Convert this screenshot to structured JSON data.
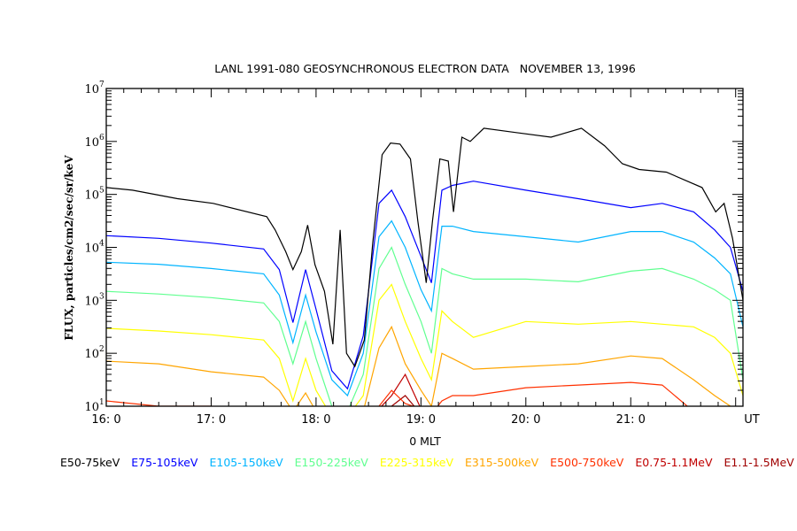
{
  "chart_data": {
    "type": "line",
    "title": "LANL 1991-080 GEOSYNCHRONOUS ELECTRON DATA   NOVEMBER 13, 1996",
    "xlabel": "0 MLT",
    "x_unit_label": "UT",
    "ylabel": "FLUX, particles/cm2/sec/sr/keV",
    "yscale": "log",
    "ylim_log10": [
      1,
      7
    ],
    "xlim_hours": [
      16,
      22.07
    ],
    "x_ticks": [
      {
        "value": 16,
        "label": "16: 0"
      },
      {
        "value": 17,
        "label": "17: 0"
      },
      {
        "value": 18,
        "label": "18: 0"
      },
      {
        "value": 19,
        "label": "19: 0"
      },
      {
        "value": 20,
        "label": "20: 0"
      },
      {
        "value": 21,
        "label": "21: 0"
      }
    ],
    "y_ticks": [
      {
        "exp": 1,
        "base": "10",
        "sup": "1"
      },
      {
        "exp": 2,
        "base": "10",
        "sup": "2"
      },
      {
        "exp": 3,
        "base": "10",
        "sup": "3"
      },
      {
        "exp": 4,
        "base": "10",
        "sup": "4"
      },
      {
        "exp": 5,
        "base": "10",
        "sup": "5"
      },
      {
        "exp": 6,
        "base": "10",
        "sup": "6"
      },
      {
        "exp": 7,
        "base": "10",
        "sup": "7"
      }
    ],
    "black_series": {
      "name": "E50-75keV",
      "color": "#000000",
      "x": [
        16.0,
        16.25,
        16.68,
        17.02,
        17.53,
        17.61,
        17.71,
        17.78,
        17.86,
        17.92,
        17.99,
        18.08,
        18.16,
        18.23,
        18.29,
        18.37,
        18.46,
        18.54,
        18.63,
        18.71,
        18.8,
        18.9,
        18.97,
        19.05,
        19.11,
        19.18,
        19.26,
        19.31,
        19.39,
        19.47,
        19.6,
        19.9,
        20.24,
        20.53,
        20.75,
        20.92,
        21.08,
        21.34,
        21.68,
        21.81,
        21.89,
        21.97,
        22.07
      ],
      "y_log10": [
        5.13,
        5.08,
        4.92,
        4.83,
        4.58,
        4.33,
        3.92,
        3.58,
        3.92,
        4.42,
        3.67,
        3.17,
        2.17,
        4.33,
        2.0,
        1.75,
        2.25,
        4.08,
        5.75,
        5.97,
        5.95,
        5.67,
        4.5,
        3.33,
        4.5,
        5.67,
        5.63,
        4.67,
        6.08,
        6.0,
        6.25,
        6.17,
        6.08,
        6.25,
        5.92,
        5.58,
        5.47,
        5.42,
        5.13,
        4.67,
        4.83,
        4.17,
        3.0
      ]
    },
    "x": [
      16.0,
      16.5,
      17.0,
      17.5,
      17.65,
      17.78,
      17.9,
      18.0,
      18.15,
      18.3,
      18.45,
      18.6,
      18.72,
      18.85,
      19.0,
      19.1,
      19.2,
      19.3,
      19.5,
      20.0,
      20.5,
      21.0,
      21.3,
      21.6,
      21.8,
      21.95,
      22.07
    ],
    "series": [
      {
        "name": "E75-105keV",
        "color": "#0000ff",
        "y_log10": [
          4.22,
          4.17,
          4.08,
          3.97,
          3.58,
          2.58,
          3.58,
          2.83,
          1.67,
          1.33,
          2.33,
          4.83,
          5.08,
          4.58,
          3.83,
          3.33,
          5.08,
          5.17,
          5.25,
          5.08,
          4.92,
          4.75,
          4.83,
          4.67,
          4.33,
          4.0,
          3.17
        ]
      },
      {
        "name": "E105-150keV",
        "color": "#00b4ff",
        "y_log10": [
          3.72,
          3.68,
          3.6,
          3.5,
          3.1,
          2.2,
          3.1,
          2.4,
          1.5,
          1.2,
          2.0,
          4.2,
          4.5,
          4.0,
          3.2,
          2.8,
          4.4,
          4.4,
          4.3,
          4.2,
          4.1,
          4.3,
          4.3,
          4.1,
          3.8,
          3.5,
          2.5
        ]
      },
      {
        "name": "E150-225keV",
        "color": "#60ff90",
        "y_log10": [
          3.17,
          3.12,
          3.05,
          2.95,
          2.6,
          1.8,
          2.6,
          1.9,
          1.0,
          0.9,
          1.6,
          3.6,
          4.0,
          3.3,
          2.6,
          2.0,
          3.6,
          3.5,
          3.4,
          3.4,
          3.35,
          3.55,
          3.6,
          3.4,
          3.2,
          3.0,
          1.5
        ]
      },
      {
        "name": "E225-315keV",
        "color": "#ffff00",
        "y_log10": [
          2.47,
          2.42,
          2.35,
          2.25,
          1.9,
          1.1,
          1.9,
          1.3,
          0.8,
          0.8,
          1.2,
          3.0,
          3.3,
          2.6,
          1.9,
          1.5,
          2.8,
          2.6,
          2.3,
          2.6,
          2.55,
          2.6,
          2.55,
          2.5,
          2.3,
          2.0,
          1.2
        ]
      },
      {
        "name": "E315-500keV",
        "color": "#ffa500",
        "y_log10": [
          1.85,
          1.8,
          1.65,
          1.55,
          1.3,
          0.9,
          1.25,
          0.9,
          0.8,
          0.8,
          0.9,
          2.1,
          2.5,
          1.8,
          1.3,
          1.0,
          2.0,
          1.9,
          1.7,
          1.75,
          1.8,
          1.95,
          1.9,
          1.5,
          1.2,
          1.0,
          0.8
        ]
      },
      {
        "name": "E500-750keV",
        "color": "#ff3000",
        "y_log10": [
          1.1,
          1.0,
          1.0,
          0.95,
          0.9,
          0.8,
          0.9,
          0.8,
          0.8,
          0.8,
          0.8,
          1.0,
          1.3,
          1.05,
          0.95,
          0.85,
          1.1,
          1.2,
          1.2,
          1.35,
          1.4,
          1.45,
          1.4,
          0.9,
          0.8,
          0.8,
          0.8
        ]
      },
      {
        "name": "E0.75-1.1MeV",
        "color": "#c00000",
        "y_log10": [
          0.9,
          0.9,
          0.9,
          0.9,
          0.9,
          0.9,
          0.9,
          0.9,
          0.9,
          0.9,
          0.9,
          0.95,
          1.2,
          1.6,
          0.95,
          0.9,
          0.95,
          0.9,
          0.9,
          0.9,
          0.9,
          0.9,
          0.9,
          0.9,
          0.9,
          0.9,
          0.9
        ]
      },
      {
        "name": "E1.1-1.5MeV",
        "color": "#a00000",
        "y_log10": [
          0.8,
          0.8,
          0.8,
          0.8,
          0.8,
          0.8,
          0.8,
          0.8,
          0.8,
          0.8,
          0.8,
          0.85,
          1.0,
          1.2,
          0.85,
          0.8,
          0.85,
          0.8,
          0.8,
          0.8,
          0.8,
          0.8,
          0.8,
          0.8,
          0.8,
          0.8,
          0.8
        ]
      }
    ],
    "legend_placement": "bottom",
    "grid": false
  }
}
